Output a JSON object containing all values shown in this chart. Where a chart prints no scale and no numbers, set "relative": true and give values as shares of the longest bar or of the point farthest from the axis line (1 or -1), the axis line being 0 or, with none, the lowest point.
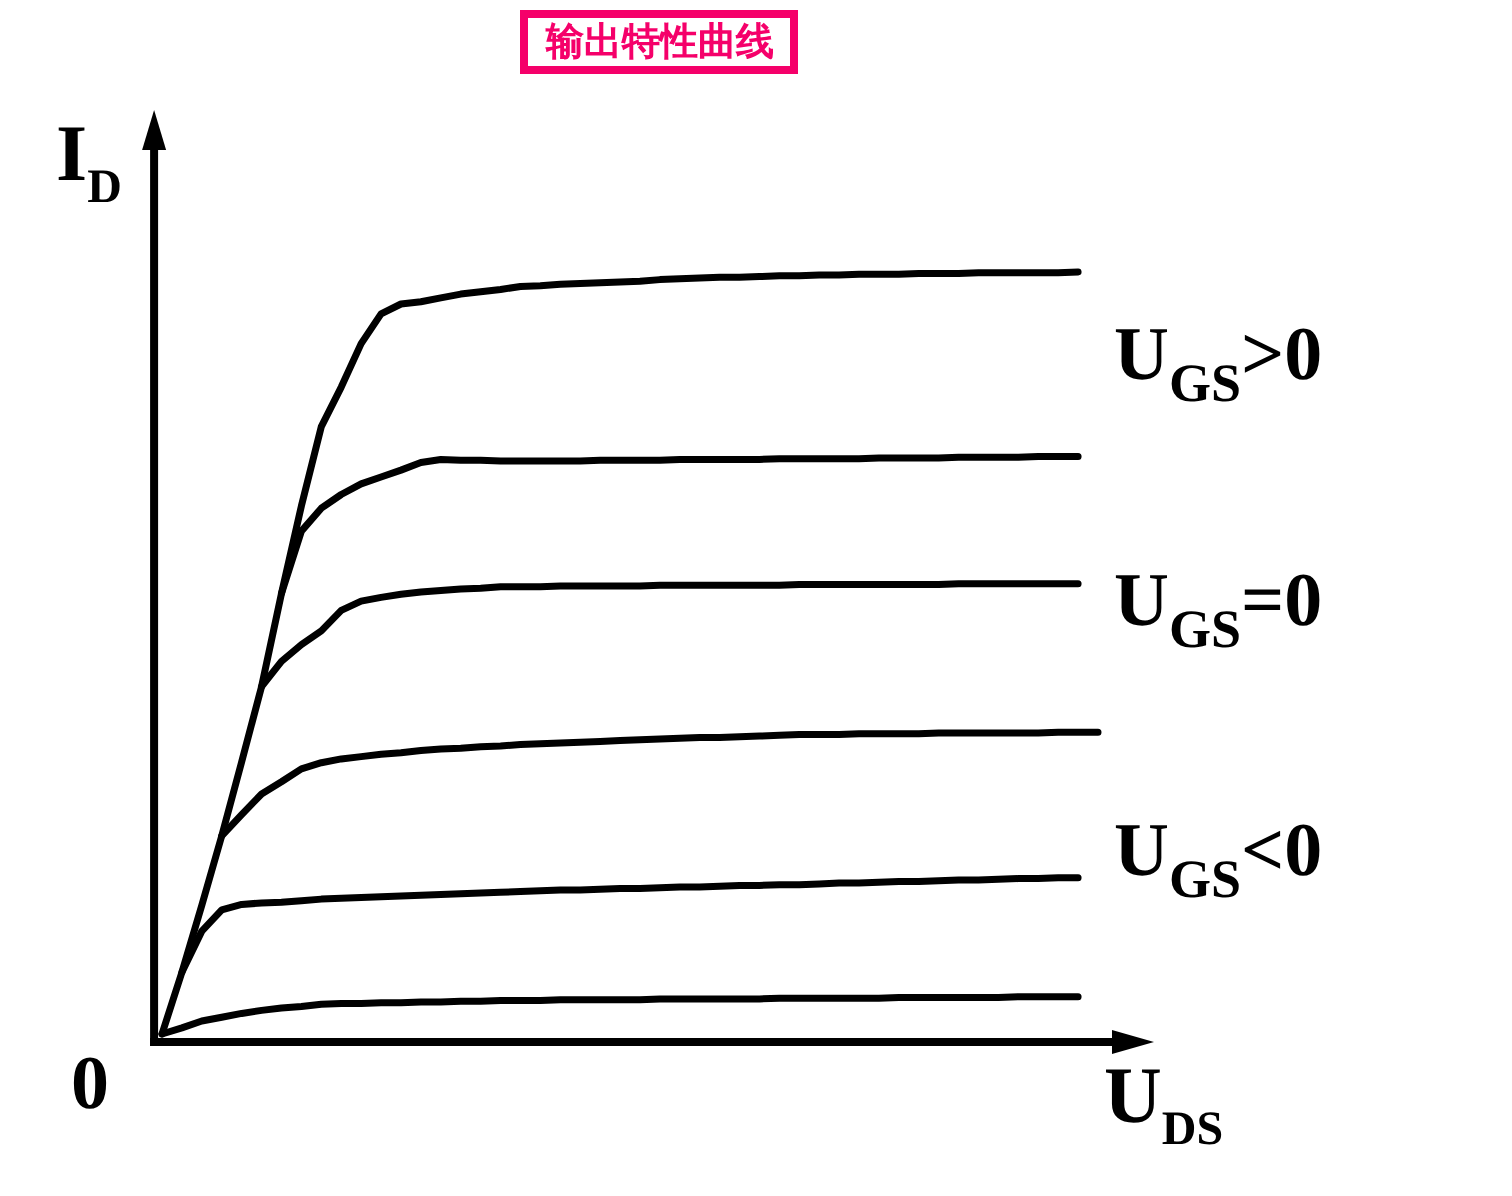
{
  "chart_data": {
    "type": "line",
    "title": "输出特性曲线",
    "xlabel": "U$_{DS}$",
    "ylabel": "I$_{D}$",
    "relative": true,
    "line_style": "solid",
    "categories": [
      null,
      null,
      null,
      null,
      null,
      null,
      null,
      null,
      null,
      null,
      null,
      null,
      null,
      null,
      null,
      null,
      null,
      null,
      null,
      null,
      null,
      null,
      null,
      null,
      null,
      null,
      null,
      null,
      null,
      null,
      null,
      null,
      null,
      null,
      null,
      null,
      null,
      null,
      null,
      null,
      null,
      null,
      null,
      null,
      null,
      null,
      null,
      null
    ],
    "series": [
      {
        "color": "#000000",
        "values": [
          0,
          0.081,
          0.169,
          0.26,
          0.357,
          0.456,
          0.578,
          0.693,
          0.797,
          0.849,
          0.906,
          0.945,
          0.958,
          0.961,
          0.966,
          0.971,
          0.974,
          0.977,
          0.981,
          0.982,
          0.984,
          0.985,
          0.986,
          0.987,
          0.988,
          0.99,
          0.991,
          0.992,
          0.993,
          0.993,
          0.994,
          0.995,
          0.995,
          0.996,
          0.996,
          0.997,
          0.997,
          0.997,
          0.998,
          0.998,
          0.998,
          0.999,
          0.999,
          0.999,
          0.999,
          0.999,
          1,
          null
        ]
      },
      {
        "color": "#000000",
        "values": [
          null,
          null,
          null,
          null,
          null,
          null,
          0.578,
          0.66,
          0.69,
          0.708,
          0.722,
          0.731,
          0.74,
          0.75,
          0.754,
          0.753,
          0.753,
          0.752,
          0.752,
          0.752,
          0.752,
          0.752,
          0.753,
          0.753,
          0.753,
          0.753,
          0.754,
          0.754,
          0.754,
          0.754,
          0.754,
          0.755,
          0.755,
          0.755,
          0.755,
          0.755,
          0.756,
          0.756,
          0.756,
          0.756,
          0.757,
          0.757,
          0.757,
          0.757,
          0.758,
          0.758,
          0.758,
          null
        ]
      },
      {
        "color": "#000000",
        "values": [
          null,
          null,
          null,
          null,
          null,
          0.456,
          0.489,
          0.511,
          0.529,
          0.556,
          0.568,
          0.573,
          0.577,
          0.58,
          0.582,
          0.584,
          0.585,
          0.587,
          0.587,
          0.587,
          0.588,
          0.588,
          0.588,
          0.588,
          0.588,
          0.589,
          0.589,
          0.589,
          0.589,
          0.589,
          0.589,
          0.589,
          0.59,
          0.59,
          0.59,
          0.59,
          0.59,
          0.59,
          0.59,
          0.59,
          0.591,
          0.591,
          0.591,
          0.591,
          0.591,
          0.591,
          0.591,
          null
        ]
      },
      {
        "color": "#000000",
        "values": [
          null,
          null,
          null,
          0.26,
          0.288,
          0.315,
          0.331,
          0.348,
          0.356,
          0.361,
          0.364,
          0.367,
          0.369,
          0.372,
          0.374,
          0.375,
          0.377,
          0.378,
          0.38,
          0.381,
          0.382,
          0.383,
          0.384,
          0.385,
          0.386,
          0.387,
          0.388,
          0.389,
          0.389,
          0.39,
          0.391,
          0.392,
          0.393,
          0.393,
          0.393,
          0.394,
          0.394,
          0.394,
          0.394,
          0.395,
          0.395,
          0.395,
          0.395,
          0.395,
          0.395,
          0.396,
          0.396,
          0.396
        ]
      },
      {
        "color": "#000000",
        "values": [
          null,
          0.081,
          0.135,
          0.163,
          0.17,
          0.172,
          0.173,
          0.175,
          0.177,
          0.178,
          0.179,
          0.18,
          0.181,
          0.182,
          0.183,
          0.184,
          0.185,
          0.186,
          0.187,
          0.188,
          0.189,
          0.189,
          0.19,
          0.191,
          0.191,
          0.192,
          0.193,
          0.193,
          0.194,
          0.195,
          0.195,
          0.196,
          0.196,
          0.197,
          0.198,
          0.198,
          0.199,
          0.2,
          0.2,
          0.201,
          0.202,
          0.202,
          0.203,
          0.204,
          0.204,
          0.205,
          0.205,
          null
        ]
      },
      {
        "color": "#000000",
        "values": [
          0,
          0.008,
          0.017,
          0.022,
          0.027,
          0.031,
          0.034,
          0.036,
          0.039,
          0.04,
          0.04,
          0.041,
          0.041,
          0.042,
          0.042,
          0.043,
          0.043,
          0.044,
          0.044,
          0.044,
          0.045,
          0.045,
          0.045,
          0.045,
          0.045,
          0.046,
          0.046,
          0.046,
          0.046,
          0.046,
          0.046,
          0.047,
          0.047,
          0.047,
          0.047,
          0.047,
          0.047,
          0.048,
          0.048,
          0.048,
          0.048,
          0.048,
          0.048,
          0.049,
          0.049,
          0.049,
          0.049,
          null
        ]
      }
    ],
    "annotations": [
      "0",
      "U$_{GS}$>0",
      "U$_{GS}$=0",
      "U$_{GS}$<0"
    ]
  }
}
